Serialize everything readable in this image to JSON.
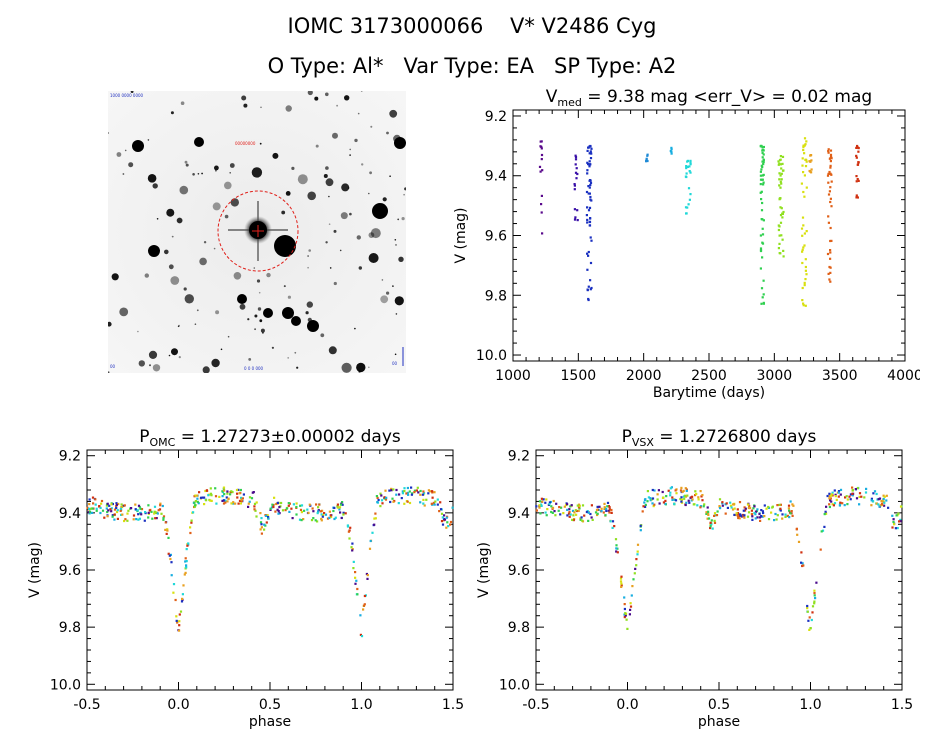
{
  "header": {
    "title": "IOMC 3173000066    V* V2486 Cyg",
    "subtitle": "O Type: Al*   Var Type: EA   SP Type: A2"
  },
  "colors": {
    "axis": "#000000",
    "background": "#ffffff",
    "finder_circle": "#e0201a"
  },
  "finder": {
    "tiny_labels": [
      "1000 0000 0000",
      "00000000",
      "0 0 0 000",
      "00",
      "00"
    ]
  },
  "chart_data": [
    {
      "id": "light-curve",
      "type": "scatter",
      "title_main": "V",
      "title_sub": "med",
      "title_rest": " = 9.38 mag <err_V> = 0.02 mag",
      "xlabel": "Barytime (days)",
      "ylabel": "V (mag)",
      "xlim": [
        1000,
        4000
      ],
      "ylim": [
        10.02,
        9.18
      ],
      "xticks": [
        "1000",
        "1500",
        "2000",
        "2500",
        "3000",
        "3500",
        "4000"
      ],
      "yticks": [
        "9.2",
        "9.4",
        "9.6",
        "9.8",
        "10.0"
      ],
      "grid": false,
      "series": [
        {
          "color": "#5a0a8c",
          "x_range": [
            1205,
            1225
          ],
          "v_range": [
            9.28,
            9.63
          ],
          "count": 14
        },
        {
          "color": "#3a10a8",
          "x_range": [
            1470,
            1495
          ],
          "v_range": [
            9.33,
            9.55
          ],
          "count": 16
        },
        {
          "color": "#1a30c0",
          "x_range": [
            1565,
            1600
          ],
          "v_range": [
            9.3,
            9.83
          ],
          "count": 60
        },
        {
          "color": "#1e8ad6",
          "x_range": [
            2015,
            2030
          ],
          "v_range": [
            9.32,
            9.36
          ],
          "count": 6
        },
        {
          "color": "#18aee0",
          "x_range": [
            2205,
            2215
          ],
          "v_range": [
            9.3,
            9.34
          ],
          "count": 5
        },
        {
          "color": "#20d8d8",
          "x_range": [
            2320,
            2360
          ],
          "v_range": [
            9.35,
            9.56
          ],
          "count": 22
        },
        {
          "color": "#30d050",
          "x_range": [
            2895,
            2920
          ],
          "v_range": [
            9.3,
            9.84
          ],
          "count": 55
        },
        {
          "color": "#90e020",
          "x_range": [
            3030,
            3070
          ],
          "v_range": [
            9.33,
            9.67
          ],
          "count": 45
        },
        {
          "color": "#d8e010",
          "x_range": [
            3210,
            3250
          ],
          "v_range": [
            9.27,
            9.84
          ],
          "count": 45
        },
        {
          "color": "#e8a020",
          "x_range": [
            3265,
            3285
          ],
          "v_range": [
            9.33,
            9.4
          ],
          "count": 10
        },
        {
          "color": "#e06018",
          "x_range": [
            3410,
            3440
          ],
          "v_range": [
            9.31,
            9.78
          ],
          "count": 40
        },
        {
          "color": "#d03010",
          "x_range": [
            3625,
            3645
          ],
          "v_range": [
            9.3,
            9.49
          ],
          "count": 18
        }
      ]
    },
    {
      "id": "phase-omc",
      "type": "scatter",
      "title_main": "P",
      "title_sub": "OMC",
      "title_rest": " = 1.27273±0.00002 days",
      "xlabel": "phase",
      "ylabel": "V (mag)",
      "xlim": [
        -0.5,
        1.5
      ],
      "ylim": [
        10.02,
        9.18
      ],
      "xticks": [
        "-0.5",
        "0.0",
        "0.5",
        "1.0",
        "1.5"
      ],
      "yticks": [
        "9.2",
        "9.4",
        "9.6",
        "9.8",
        "10.0"
      ],
      "grid": false,
      "phase_model": {
        "baseline": 9.37,
        "primary_phase": 0.0,
        "primary_depth": 9.82,
        "primary_width": 0.09,
        "secondary_phase": 0.46,
        "secondary_depth": 9.46,
        "secondary_width": 0.05
      }
    },
    {
      "id": "phase-vsx",
      "type": "scatter",
      "title_main": "P",
      "title_sub": "VSX",
      "title_rest": " = 1.2726800 days",
      "xlabel": "phase",
      "ylabel": "V (mag)",
      "xlim": [
        -0.5,
        1.5
      ],
      "ylim": [
        10.02,
        9.18
      ],
      "xticks": [
        "-0.5",
        "0.0",
        "0.5",
        "1.0",
        "1.5"
      ],
      "yticks": [
        "9.2",
        "9.4",
        "9.6",
        "9.8",
        "10.0"
      ],
      "grid": false,
      "phase_model": {
        "baseline": 9.37,
        "primary_phase": 0.0,
        "primary_depth": 9.82,
        "primary_width": 0.1,
        "secondary_phase": 0.46,
        "secondary_depth": 9.46,
        "secondary_width": 0.05
      }
    }
  ]
}
